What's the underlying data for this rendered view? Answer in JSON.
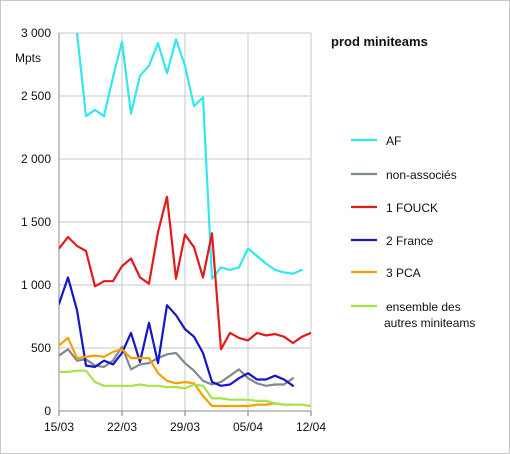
{
  "chart_data": {
    "type": "line",
    "title": "prod miniteams",
    "ylabel": "Mpts",
    "ylim": [
      0,
      3000
    ],
    "yticks": [
      0,
      500,
      1000,
      1500,
      2000,
      2500,
      3000
    ],
    "ytick_labels": [
      "0",
      "500",
      "1 000",
      "1 500",
      "2 000",
      "2 500",
      "3 000"
    ],
    "xlim": [
      "15/03",
      "12/04"
    ],
    "xticks": [
      "15/03",
      "22/03",
      "29/03",
      "05/04",
      "12/04"
    ],
    "x": [
      "15/03",
      "16/03",
      "17/03",
      "18/03",
      "19/03",
      "20/03",
      "21/03",
      "22/03",
      "23/03",
      "24/03",
      "25/03",
      "26/03",
      "27/03",
      "28/03",
      "29/03",
      "30/03",
      "31/03",
      "01/04",
      "02/04",
      "03/04",
      "04/04",
      "05/04",
      "06/04",
      "07/04",
      "08/04",
      "09/04",
      "10/04",
      "11/04",
      "12/04"
    ],
    "grid": true,
    "legend_position": "right",
    "series": [
      {
        "name": "AF",
        "color": "#33e8ec",
        "values": [
          null,
          null,
          3000,
          2340,
          2390,
          2340,
          2650,
          2930,
          2360,
          2660,
          2740,
          2920,
          2680,
          2950,
          2740,
          2420,
          2490,
          1050,
          1140,
          1120,
          1140,
          1290,
          1230,
          1170,
          1120,
          1100,
          1090,
          1120,
          null
        ]
      },
      {
        "name": "non-associés",
        "color": "#7f8a8c",
        "values": [
          440,
          490,
          400,
          410,
          360,
          350,
          400,
          510,
          330,
          370,
          380,
          420,
          450,
          460,
          380,
          320,
          240,
          210,
          230,
          280,
          330,
          260,
          220,
          200,
          210,
          210,
          260,
          null,
          null
        ]
      },
      {
        "name": "1 FOUCK",
        "color": "#e31a1c",
        "values": [
          1290,
          1380,
          1310,
          1270,
          990,
          1030,
          1030,
          1150,
          1210,
          1060,
          1010,
          1420,
          1700,
          1050,
          1400,
          1300,
          1060,
          1410,
          490,
          620,
          580,
          560,
          620,
          600,
          610,
          590,
          540,
          590,
          620
        ]
      },
      {
        "name": "2 France",
        "color": "#1416c8",
        "values": [
          850,
          1060,
          800,
          360,
          350,
          400,
          370,
          460,
          620,
          390,
          700,
          380,
          840,
          760,
          650,
          590,
          460,
          230,
          200,
          210,
          260,
          300,
          250,
          250,
          280,
          250,
          200,
          null,
          null
        ]
      },
      {
        "name": "3 PCA",
        "color": "#f5a000",
        "values": [
          520,
          580,
          420,
          430,
          440,
          430,
          470,
          490,
          420,
          420,
          420,
          300,
          240,
          220,
          230,
          220,
          120,
          40,
          40,
          40,
          40,
          40,
          50,
          50,
          60,
          50,
          50,
          null,
          null
        ]
      },
      {
        "name": "ensemble des autres miniteams",
        "name_lines": [
          "ensemble des",
          "autres miniteams"
        ],
        "color": "#a6e34a",
        "values": [
          310,
          310,
          320,
          320,
          230,
          200,
          200,
          200,
          200,
          210,
          200,
          200,
          190,
          190,
          180,
          210,
          200,
          100,
          100,
          90,
          90,
          90,
          80,
          80,
          60,
          50,
          50,
          50,
          40
        ]
      }
    ]
  }
}
